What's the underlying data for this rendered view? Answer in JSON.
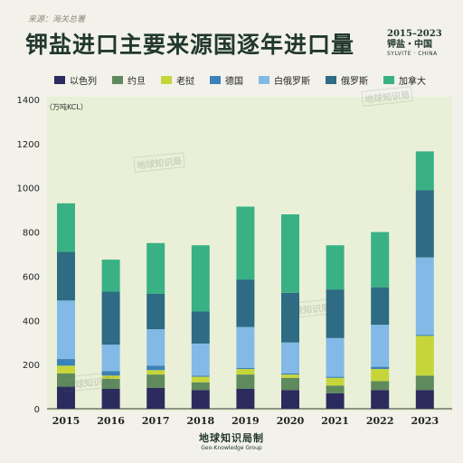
{
  "source_note": "来源：海关总署",
  "title": "钾盐进口主要来源国逐年进口量",
  "meta": {
    "years": "2015–2023",
    "cn": "钾盐・中国",
    "en": "SYLVITE · CHINA"
  },
  "footer": {
    "brand": "地球知识局制",
    "brand_en": "Geo-Knowledge Group"
  },
  "watermark": "地球知识局",
  "colors": {
    "background": "#f3f2ea",
    "plot_bg": "#eaf0d8",
    "title": "#22382f"
  },
  "chart_data": {
    "type": "bar",
    "stacked": true,
    "unit_label": "（万吨KCL）",
    "categories": [
      "2015",
      "2016",
      "2017",
      "2018",
      "2019",
      "2020",
      "2021",
      "2022",
      "2023"
    ],
    "ylim": [
      0,
      1400
    ],
    "yticks": [
      0,
      200,
      400,
      600,
      800,
      1000,
      1200,
      1400
    ],
    "grid": false,
    "legend_position": "top",
    "series": [
      {
        "name": "以色列",
        "color": "#2c2b5e",
        "values": [
          100,
          90,
          95,
          85,
          90,
          85,
          70,
          85,
          85
        ]
      },
      {
        "name": "约旦",
        "color": "#5e8a5e",
        "values": [
          60,
          45,
          60,
          35,
          65,
          55,
          35,
          40,
          65
        ]
      },
      {
        "name": "老挝",
        "color": "#c6d63a",
        "values": [
          35,
          15,
          20,
          25,
          25,
          15,
          35,
          55,
          180
        ]
      },
      {
        "name": "德国",
        "color": "#3b82b8",
        "values": [
          30,
          20,
          20,
          5,
          5,
          5,
          5,
          10,
          5
        ]
      },
      {
        "name": "白俄罗斯",
        "color": "#82b9e6",
        "values": [
          265,
          120,
          165,
          145,
          185,
          140,
          175,
          190,
          350
        ]
      },
      {
        "name": "俄罗斯",
        "color": "#2e6b84",
        "values": [
          220,
          240,
          160,
          145,
          215,
          225,
          220,
          170,
          305
        ]
      },
      {
        "name": "加拿大",
        "color": "#39b184",
        "values": [
          220,
          145,
          230,
          300,
          330,
          355,
          200,
          250,
          175
        ]
      }
    ]
  }
}
